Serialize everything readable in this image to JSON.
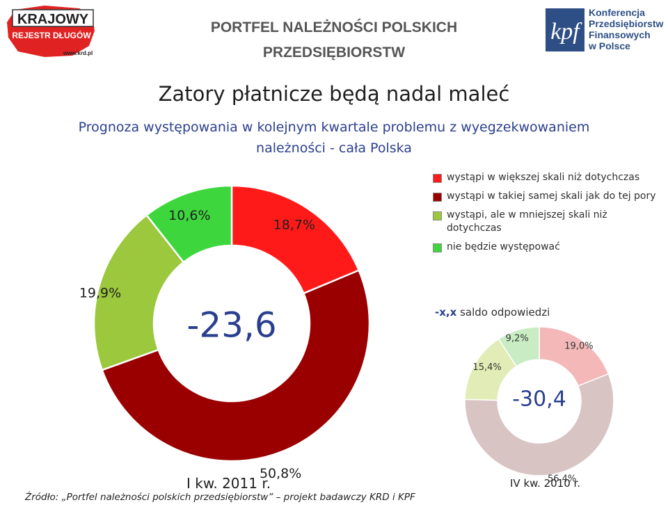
{
  "header": {
    "title_line1": "PORTFEL NALEŻNOŚCI POLSKICH",
    "title_line2": "PRZEDSIĘBIORSTW",
    "logo_left": {
      "line1": "KRAJOWY",
      "line2": "REJESTR DŁUGÓW",
      "url": "www.krd.pl"
    },
    "logo_right": {
      "mark": "kpf",
      "line1": "Konferencja",
      "line2": "Przedsiębiorstw",
      "line3": "Finansowych",
      "line4": "w Polsce"
    }
  },
  "title": "Zatory płatnicze będą nadal maleć",
  "subtitle_line1": "Prognoza występowania w kolejnym kwartale problemu z wyegzekwowaniem",
  "subtitle_line2": "należności - cała Polska",
  "legend": {
    "items": [
      {
        "label": "wystąpi w większej skali niż dotychczas",
        "color": "#ff1a1a"
      },
      {
        "label": "wystąpi w takiej samej skali jak do tej pory",
        "color": "#9b0000"
      },
      {
        "label": "wystąpi, ale w mniejszej skali niż dotychczas",
        "color": "#9bc83c"
      },
      {
        "label": "nie będzie występować",
        "color": "#3dd63d"
      }
    ],
    "saldo_key": "-x,x",
    "saldo_label": "saldo odpowiedzi"
  },
  "chart_data": [
    {
      "type": "pie",
      "variant": "donut",
      "period": "I kw. 2011 r.",
      "center_value": "-23,6",
      "slices": [
        {
          "label": "wystąpi w większej skali niż dotychczas",
          "value": 18.7,
          "display": "18,7%",
          "color": "#ff1a1a"
        },
        {
          "label": "wystąpi w takiej samej skali jak do tej pory",
          "value": 50.8,
          "display": "50,8%",
          "color": "#9b0000"
        },
        {
          "label": "wystąpi, ale w mniejszej skali niż dotychczas",
          "value": 19.9,
          "display": "19,9%",
          "color": "#9bc83c"
        },
        {
          "label": "nie będzie występować",
          "value": 10.6,
          "display": "10,6%",
          "color": "#3dd63d"
        }
      ]
    },
    {
      "type": "pie",
      "variant": "donut",
      "faded": true,
      "period": "IV kw. 2010 r.",
      "center_value": "-30,4",
      "slices": [
        {
          "label": "wystąpi w większej skali niż dotychczas",
          "value": 19.0,
          "display": "19,0%",
          "color": "#f4b8b8"
        },
        {
          "label": "wystąpi w takiej samej skali jak do tej pory",
          "value": 56.4,
          "display": "56,4%",
          "color": "#d9c4c4"
        },
        {
          "label": "wystąpi, ale w mniejszej skali niż dotychczas",
          "value": 15.4,
          "display": "15,4%",
          "color": "#e2ecb6"
        },
        {
          "label": "nie będzie występować",
          "value": 9.2,
          "display": "9,2%",
          "color": "#c9ecc4"
        }
      ]
    }
  ],
  "source": "Źródło: „Portfel należności polskich przedsiębiorstw” – projekt badawczy KRD i KPF"
}
